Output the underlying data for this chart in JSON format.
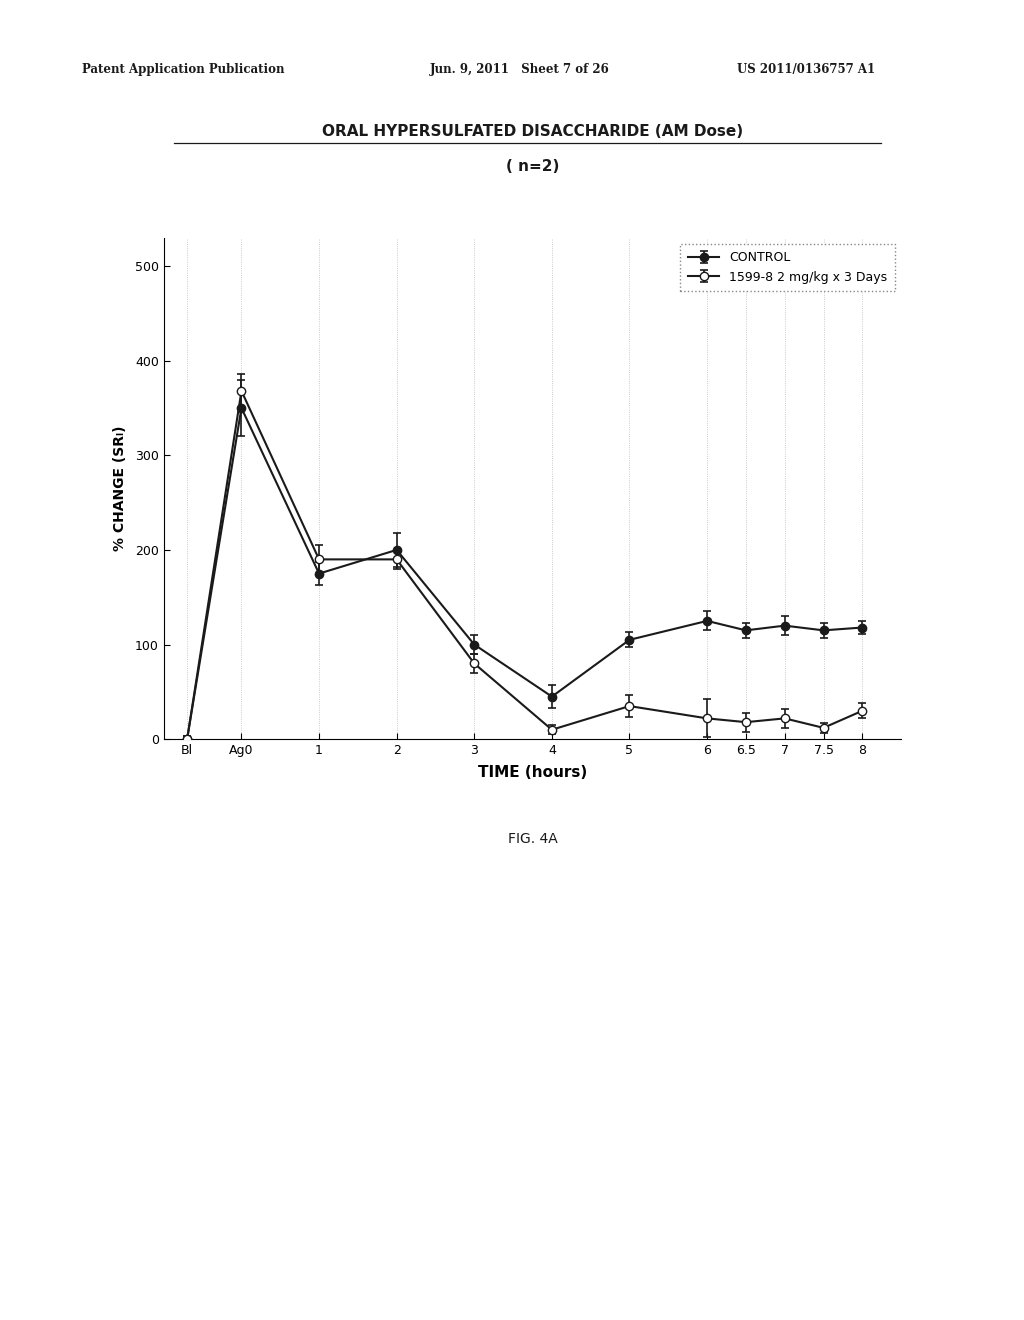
{
  "title_line1": "ORAL HYPERSULFATED DISACCHARIDE (AM Dose)",
  "title_line2": "( n=2)",
  "xlabel": "TIME (hours)",
  "ylabel": "% CHANGE (SRₗ)",
  "background_color": "#ffffff",
  "header_left": "Patent Application Publication",
  "header_mid": "Jun. 9, 2011   Sheet 7 of 26",
  "header_right": "US 2011/0136757 A1",
  "fig_label": "FIG. 4A",
  "xlim": [
    -0.3,
    9.2
  ],
  "ylim": [
    0,
    530
  ],
  "yticks": [
    0,
    100,
    200,
    300,
    400,
    500
  ],
  "xtick_labels": [
    "Bl",
    "Ag0",
    "1",
    "2",
    "3",
    "4",
    "5",
    "6",
    "6.5",
    "7",
    "7.5",
    "8"
  ],
  "xtick_positions": [
    0.0,
    0.7,
    1.7,
    2.7,
    3.7,
    4.7,
    5.7,
    6.7,
    7.2,
    7.7,
    8.2,
    8.7
  ],
  "control_x": [
    0.0,
    0.7,
    1.7,
    2.7,
    3.7,
    4.7,
    5.7,
    6.7,
    7.2,
    7.7,
    8.2,
    8.7
  ],
  "control_y": [
    0,
    350,
    175,
    200,
    100,
    45,
    105,
    125,
    115,
    120,
    115,
    118
  ],
  "control_yerr": [
    3,
    30,
    12,
    18,
    10,
    12,
    8,
    10,
    8,
    10,
    8,
    7
  ],
  "treat_x": [
    0.0,
    0.7,
    1.7,
    2.7,
    3.7,
    4.7,
    5.7,
    6.7,
    7.2,
    7.7,
    8.2,
    8.7
  ],
  "treat_y": [
    0,
    368,
    190,
    190,
    80,
    10,
    35,
    22,
    18,
    22,
    12,
    30
  ],
  "treat_yerr": [
    3,
    18,
    15,
    10,
    10,
    5,
    12,
    20,
    10,
    10,
    5,
    8
  ],
  "control_label": "CONTROL",
  "treat_label": "1599-8 2 mg/kg x 3 Days",
  "line_color": "#1a1a1a",
  "marker_size": 6,
  "line_width": 1.5
}
